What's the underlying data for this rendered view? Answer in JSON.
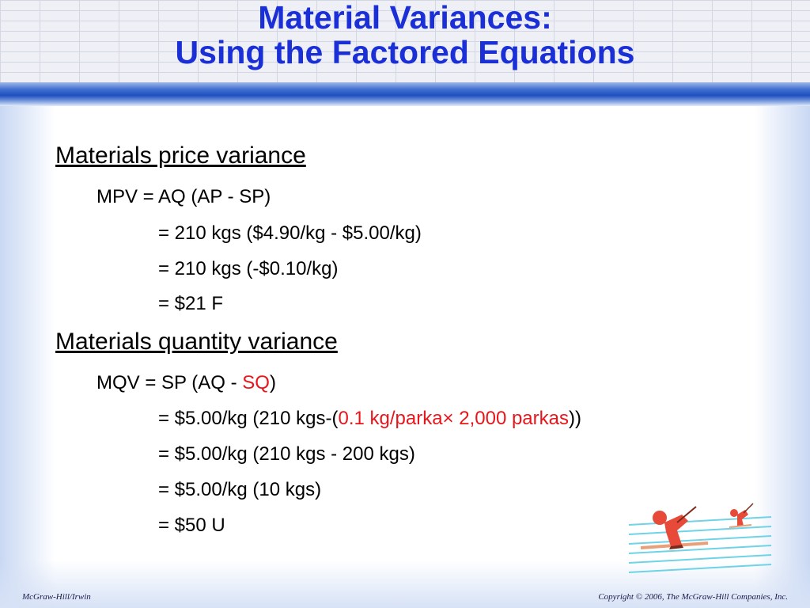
{
  "title": {
    "line1": "Material Variances:",
    "line2": "Using the Factored Equations"
  },
  "price_section": {
    "heading": "Materials price variance",
    "formula": "MPV = AQ (AP - SP)",
    "step1": "= 210 kgs ($4.90/kg - $5.00/kg)",
    "step2": "= 210 kgs (-$0.10/kg)",
    "step3": "= $21 F"
  },
  "quantity_section": {
    "heading": "Materials quantity variance",
    "formula_prefix": "MQV = SP (AQ - ",
    "formula_highlight": "SQ",
    "formula_suffix": ")",
    "step1_prefix": "= $5.00/kg (210 kgs-(",
    "step1_highlight": "0.1 kg/parka× 2,000 parkas",
    "step1_suffix": "))",
    "step2": "= $5.00/kg (210 kgs - 200 kgs)",
    "step3": "= $5.00/kg (10 kgs)",
    "step4": "= $50 U"
  },
  "footer": {
    "left": "McGraw-Hill/Irwin",
    "right": "Copyright © 2006, The McGraw-Hill Companies, Inc."
  },
  "colors": {
    "title": "#1a2fd6",
    "highlight": "#e8161b",
    "stripe": "#1f4fbf"
  },
  "icons": [
    "skier-clipart-icon"
  ]
}
